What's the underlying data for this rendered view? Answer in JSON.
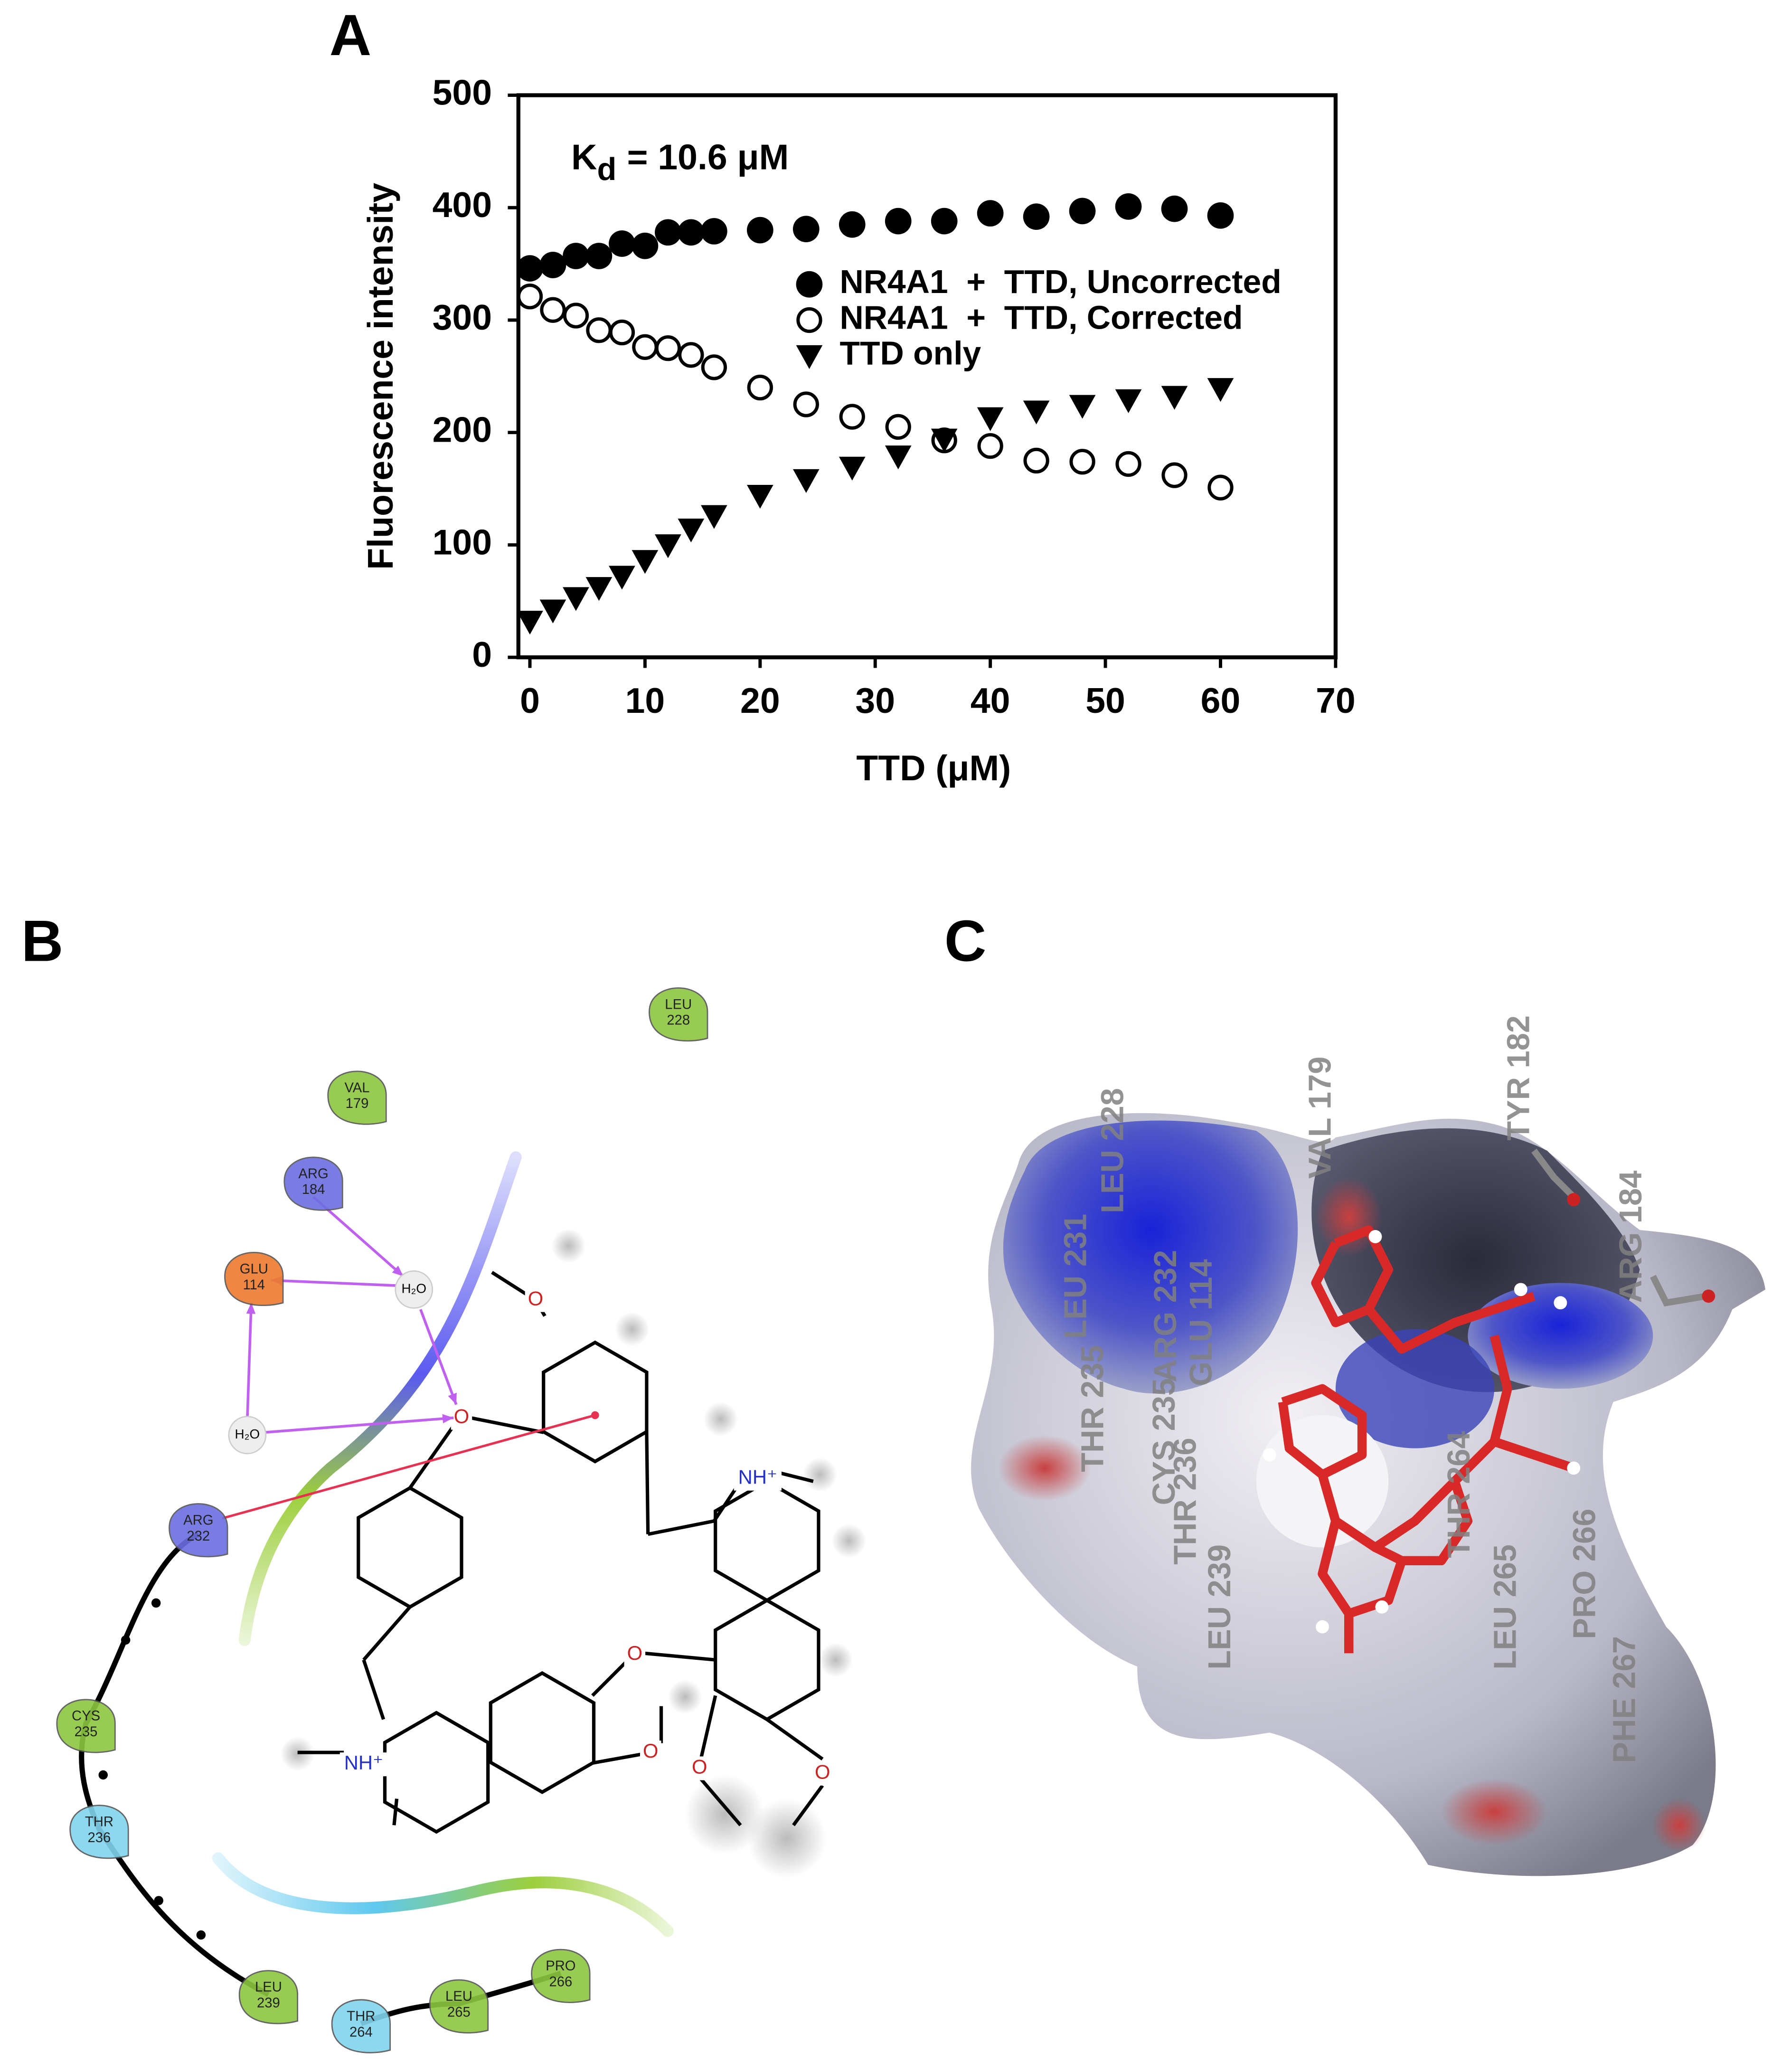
{
  "panel_labels": [
    "A",
    "B",
    "C"
  ],
  "chart_data": {
    "type": "scatter",
    "xlabel": "TTD (μM)",
    "ylabel": "Fluorescence intensity",
    "annotation": {
      "text": "K",
      "subscript": "d",
      "suffix": "= 10.6 μM"
    },
    "x": [
      0,
      2,
      4,
      6,
      8,
      10,
      12,
      14,
      16,
      20,
      24,
      28,
      32,
      36,
      40,
      44,
      48,
      52,
      56,
      60
    ],
    "series": [
      {
        "name": "NR4A1  +  TTD, Uncorrected",
        "color": "#000000",
        "marker": "filled-circle",
        "values": [
          346,
          349,
          357,
          357,
          368,
          366,
          378,
          378,
          379,
          380,
          381,
          385,
          388,
          388,
          395,
          392,
          397,
          401,
          399,
          393
        ]
      },
      {
        "name": "NR4A1  +  TTD, Corrected",
        "color": "#000000",
        "marker": "open-circle",
        "values": [
          321,
          309,
          304,
          291,
          289,
          276,
          275,
          269,
          258,
          240,
          225,
          214,
          205,
          193,
          188,
          175,
          174,
          172,
          162,
          151
        ]
      },
      {
        "name": "TTD only",
        "color": "#000000",
        "marker": "triangle-down",
        "values": [
          32,
          42,
          53,
          62,
          72,
          86,
          100,
          114,
          126,
          144,
          158,
          169,
          179,
          194,
          213,
          219,
          224,
          229,
          232,
          239
        ]
      }
    ],
    "xlim": [
      -1,
      70
    ],
    "ylim": [
      0,
      500
    ],
    "xticks": [
      0,
      10,
      20,
      30,
      40,
      50,
      60,
      70
    ],
    "yticks": [
      0,
      100,
      200,
      300,
      400,
      500
    ],
    "legend": "upper right",
    "grid": false
  },
  "interaction_diagram": {
    "residues": [
      {
        "name": "LEU",
        "number": "228",
        "color": "#8cc63f"
      },
      {
        "name": "VAL",
        "number": "179",
        "color": "#8cc63f"
      },
      {
        "name": "ARG",
        "number": "184",
        "color": "#6b6fe0"
      },
      {
        "name": "GLU",
        "number": "114",
        "color": "#ee7a2e"
      },
      {
        "name": "ARG",
        "number": "232",
        "color": "#6b6fe0"
      },
      {
        "name": "CYS",
        "number": "235",
        "color": "#8cc63f"
      },
      {
        "name": "THR",
        "number": "236",
        "color": "#7fd4ee"
      },
      {
        "name": "LEU",
        "number": "239",
        "color": "#8cc63f"
      },
      {
        "name": "THR",
        "number": "264",
        "color": "#7fd4ee"
      },
      {
        "name": "LEU",
        "number": "265",
        "color": "#8cc63f"
      },
      {
        "name": "PRO",
        "number": "266",
        "color": "#8cc63f"
      }
    ],
    "waters": [
      "H₂O",
      "H₂O"
    ],
    "atoms": [
      "O",
      "O",
      "O",
      "O",
      "O",
      "O",
      "NH⁺",
      "NH⁺"
    ]
  },
  "surface_view": {
    "residues": [
      "LEU 228",
      "VAL 179",
      "TYR 182",
      "ARG 184",
      "LEU 231",
      "THR 235",
      "ARG 232",
      "GLU 114",
      "CYS 235",
      "THR 236",
      "LEU 239",
      "LEU 265",
      "PRO 266",
      "PHE 267",
      "THR 264"
    ]
  }
}
